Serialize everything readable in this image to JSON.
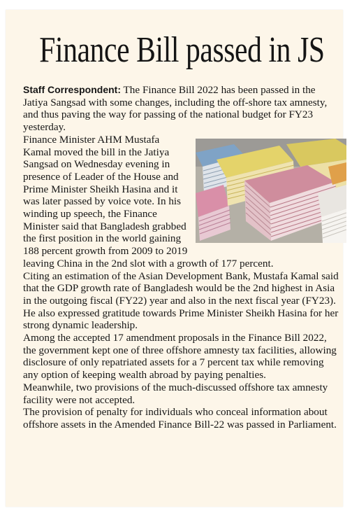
{
  "article": {
    "headline": "Finance Bill passed in JS",
    "byline": "Staff Correspondent:",
    "p1": "The Finance Bill 2022 has been passed in the Jatiya Sangsad with some changes, including the off-shore tax amnesty, and thus paving the way for passing of the national budget for FY23 yesterday.",
    "p2": "Finance Minister AHM Mustafa Kamal moved the bill in the Jatiya Sangsad on Wednesday evening in presence of Leader of the House and Prime Minister Sheikh Hasina and it was later passed by voice vote. In his winding up speech, the Finance Minister said that Bangladesh grabbed the first position in the world gaining 188 percent growth from 2009 to 2019 leaving China in the 2nd slot with a growth of 177 percent.",
    "p3": "Citing an estimation of the Asian Development Bank, Mustafa Kamal said that the GDP growth rate of Bangladesh would be the 2nd highest in Asia in the outgoing fiscal (FY22) year and also in the next fiscal year (FY23).",
    "p4": "He also expressed gratitude towards Prime Minister Sheikh Hasina for her strong dynamic leadership.",
    "p5": "Among the accepted 17 amendment proposals in the Finance Bill 2022, the government kept one of three offshore amnesty tax facilities, allowing disclosure of only repatriated assets for a 7 percent tax while removing any option of keeping wealth abroad by paying penalties.",
    "p6": "Meanwhile, two provisions of the much-discussed offshore tax amnesty facility were not accepted.",
    "p7": "The provision of penalty for individuals who conceal information about offshore assets in the Amended Finance Bill-22 was passed in Parliament."
  }
}
